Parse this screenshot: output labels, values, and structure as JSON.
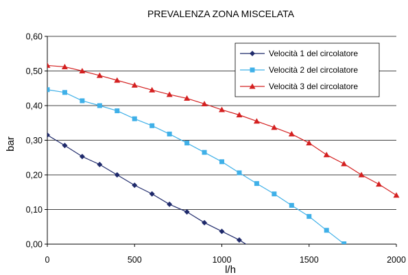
{
  "chart_data": {
    "type": "line",
    "title": "PREVALENZA ZONA MISCELATA",
    "xlabel": "l/h",
    "ylabel": "bar",
    "xlim": [
      0,
      2000
    ],
    "ylim": [
      0,
      0.6
    ],
    "x_ticks": [
      0,
      500,
      1000,
      1500,
      2000
    ],
    "x_tick_labels": [
      "0",
      "500",
      "1000",
      "1500",
      "2000"
    ],
    "y_ticks": [
      0,
      0.1,
      0.2,
      0.3,
      0.4,
      0.5,
      0.6
    ],
    "y_tick_labels": [
      "0,00",
      "0,10",
      "0,20",
      "0,30",
      "0,40",
      "0,50",
      "0,60"
    ],
    "grid": "horizontal",
    "legend_position": "top-right",
    "series": [
      {
        "name": "Velocità 1 del circolatore",
        "color": "#1f2a6b",
        "marker": "diamond",
        "points": [
          [
            0,
            0.315
          ],
          [
            100,
            0.285
          ],
          [
            200,
            0.253
          ],
          [
            300,
            0.23
          ],
          [
            400,
            0.2
          ],
          [
            500,
            0.17
          ],
          [
            600,
            0.145
          ],
          [
            700,
            0.115
          ],
          [
            800,
            0.093
          ],
          [
            900,
            0.062
          ],
          [
            1000,
            0.037
          ],
          [
            1100,
            0.012
          ],
          [
            1170,
            -0.01
          ]
        ]
      },
      {
        "name": "Velocità 2 del circolatore",
        "color": "#3fb0e8",
        "marker": "square",
        "points": [
          [
            0,
            0.446
          ],
          [
            100,
            0.438
          ],
          [
            200,
            0.414
          ],
          [
            300,
            0.4
          ],
          [
            400,
            0.385
          ],
          [
            500,
            0.362
          ],
          [
            600,
            0.342
          ],
          [
            700,
            0.318
          ],
          [
            800,
            0.292
          ],
          [
            900,
            0.265
          ],
          [
            1000,
            0.238
          ],
          [
            1100,
            0.206
          ],
          [
            1200,
            0.175
          ],
          [
            1300,
            0.145
          ],
          [
            1400,
            0.112
          ],
          [
            1500,
            0.08
          ],
          [
            1600,
            0.04
          ],
          [
            1700,
            0.001
          ],
          [
            1710,
            -0.005
          ]
        ]
      },
      {
        "name": "Velocità 3 del circolatore",
        "color": "#d42020",
        "marker": "triangle",
        "points": [
          [
            0,
            0.516
          ],
          [
            100,
            0.512
          ],
          [
            200,
            0.5
          ],
          [
            300,
            0.487
          ],
          [
            400,
            0.473
          ],
          [
            500,
            0.459
          ],
          [
            600,
            0.445
          ],
          [
            700,
            0.432
          ],
          [
            800,
            0.421
          ],
          [
            900,
            0.405
          ],
          [
            1000,
            0.388
          ],
          [
            1100,
            0.373
          ],
          [
            1200,
            0.355
          ],
          [
            1300,
            0.337
          ],
          [
            1400,
            0.318
          ],
          [
            1500,
            0.292
          ],
          [
            1600,
            0.258
          ],
          [
            1700,
            0.232
          ],
          [
            1800,
            0.2
          ],
          [
            1900,
            0.173
          ],
          [
            2000,
            0.141
          ]
        ]
      }
    ]
  }
}
